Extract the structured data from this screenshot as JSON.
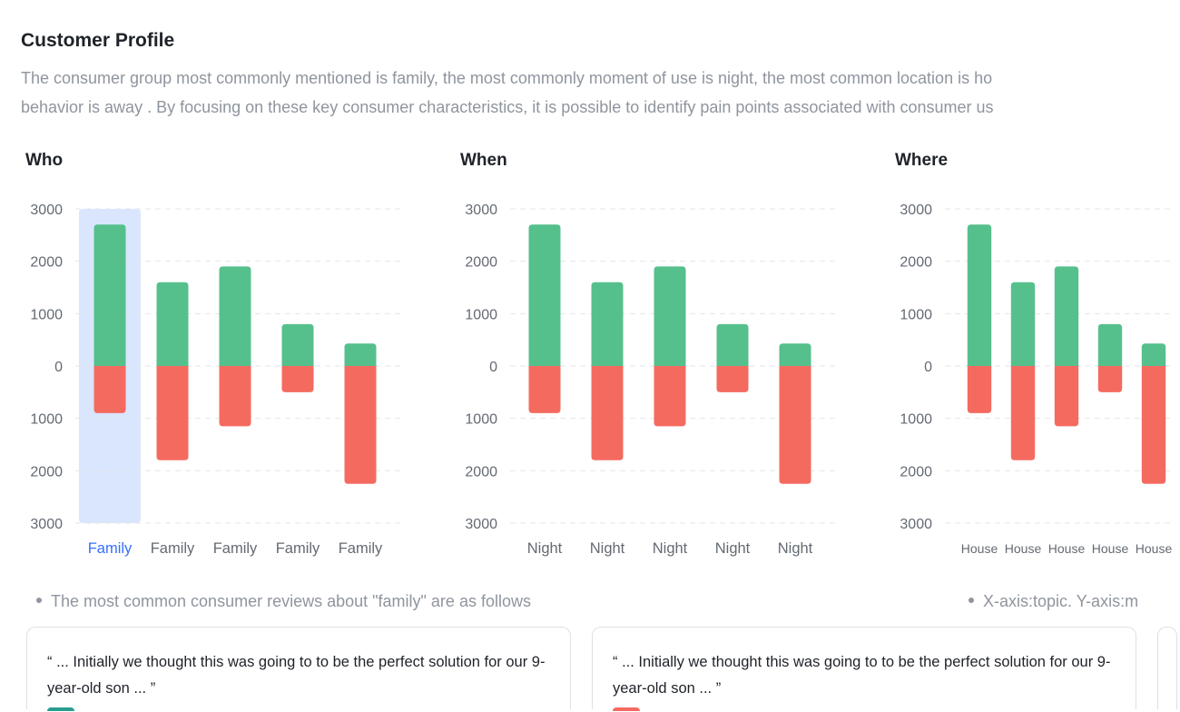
{
  "header": {
    "title": "Customer Profile",
    "description_lines": [
      "The consumer group most commonly mentioned is family, the most commonly moment of use is night, the most common location is ho",
      "behavior is away . By focusing on these key consumer characteristics, it is possible to identify pain points associated with consumer us"
    ]
  },
  "colors": {
    "positive": "#55c08c",
    "negative": "#f56a5f",
    "highlight": "#d9e6fd",
    "active_label": "#3370ff"
  },
  "chart_data": [
    {
      "type": "bar",
      "title": "Who",
      "categories": [
        "Family",
        "Family",
        "Family",
        "Family",
        "Family"
      ],
      "series": [
        {
          "values": [
            2700,
            1600,
            1900,
            800,
            430
          ]
        },
        {
          "values": [
            -900,
            -1800,
            -1150,
            -500,
            -2250
          ]
        }
      ],
      "ylim": [
        -3000,
        3000
      ],
      "y_ticks": [
        "3000",
        "2000",
        "1000",
        "0",
        "1000",
        "2000",
        "3000"
      ],
      "grid": true,
      "highlighted_index": 0
    },
    {
      "type": "bar",
      "title": "When",
      "categories": [
        "Night",
        "Night",
        "Night",
        "Night",
        "Night"
      ],
      "series": [
        {
          "values": [
            2700,
            1600,
            1900,
            800,
            430
          ]
        },
        {
          "values": [
            -900,
            -1800,
            -1150,
            -500,
            -2250
          ]
        }
      ],
      "ylim": [
        -3000,
        3000
      ],
      "y_ticks": [
        "3000",
        "2000",
        "1000",
        "0",
        "1000",
        "2000",
        "3000"
      ],
      "grid": true
    },
    {
      "type": "bar",
      "title": "Where",
      "categories": [
        "House",
        "House",
        "House",
        "House",
        "House"
      ],
      "series": [
        {
          "values": [
            2700,
            1600,
            1900,
            800,
            430
          ]
        },
        {
          "values": [
            -900,
            -1800,
            -1150,
            -500,
            -2250
          ]
        }
      ],
      "ylim": [
        -3000,
        3000
      ],
      "y_ticks": [
        "3000",
        "2000",
        "1000",
        "0",
        "1000",
        "2000",
        "3000"
      ],
      "grid": true
    }
  ],
  "notes": {
    "reviews_heading": "The most common consumer reviews about \"family\" are as follows",
    "axis_note": "X-axis:topic. Y-axis:m"
  },
  "reviews": [
    {
      "quote": "“ ... Initially we thought this was going to to be the perfect solution for our 9-year-old son ... ”",
      "avatar_color": "#2a9d8f"
    },
    {
      "quote": "“ ... Initially we thought this was going to to be the perfect solution for our 9-year-old son ... ”",
      "avatar_color": "#f56a5f"
    }
  ]
}
